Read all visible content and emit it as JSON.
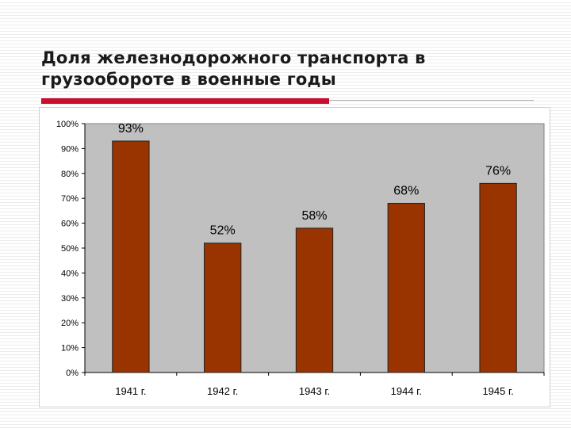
{
  "slide": {
    "title_line1": "Доля железнодорожного транспорта в",
    "title_line2": "грузообороте в военные годы"
  },
  "chart_data": {
    "type": "bar",
    "categories": [
      "1941 г.",
      "1942 г.",
      "1943 г.",
      "1944 г.",
      "1945 г."
    ],
    "values": [
      93,
      52,
      58,
      68,
      76
    ],
    "data_labels": [
      "93%",
      "52%",
      "58%",
      "68%",
      "76%"
    ],
    "y_ticks": [
      "0%",
      "10%",
      "20%",
      "30%",
      "40%",
      "50%",
      "60%",
      "70%",
      "80%",
      "90%",
      "100%"
    ],
    "ylim": [
      0,
      100
    ],
    "grid": false,
    "legend": "none",
    "colors": {
      "bar": "#993300",
      "bar_outline": "#222222",
      "plot_area": "#c0c0c0",
      "plot_border": "#808080"
    }
  }
}
